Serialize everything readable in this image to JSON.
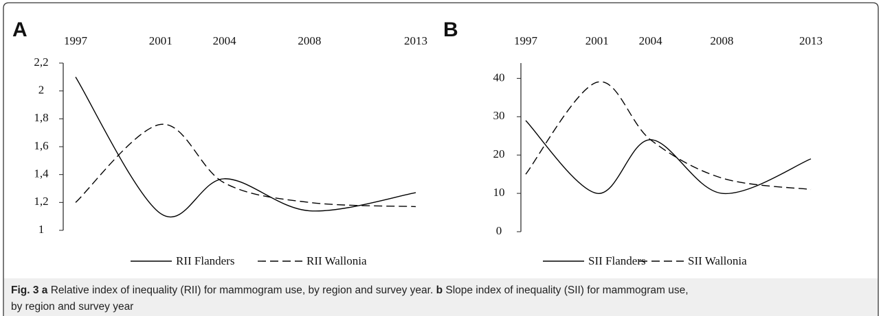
{
  "chart_data": [
    {
      "type": "line",
      "panel": "A",
      "x": [
        1997,
        2001,
        2004,
        2008,
        2013
      ],
      "xlim": [
        1997,
        2013
      ],
      "xticks": [
        1997,
        2001,
        2004,
        2008,
        2013
      ],
      "ylim": [
        1,
        2.2
      ],
      "yticks": [
        1,
        {
          "value": 1.2,
          "label": "1,2"
        },
        {
          "value": 1.4,
          "label": "1,4"
        },
        {
          "value": 1.6,
          "label": "1,6"
        },
        {
          "value": 1.8,
          "label": "1,8"
        },
        2,
        {
          "value": 2.2,
          "label": "2,2"
        }
      ],
      "series": [
        {
          "name": "RII Flanders",
          "color": "#000000",
          "dash": "solid",
          "values": [
            2.1,
            1.12,
            1.37,
            1.14,
            1.27
          ]
        },
        {
          "name": "RII Wallonia",
          "color": "#000000",
          "dash": "dashed",
          "values": [
            1.2,
            1.76,
            1.34,
            1.2,
            1.17
          ]
        }
      ]
    },
    {
      "type": "line",
      "panel": "B",
      "x": [
        1997,
        2001,
        2004,
        2008,
        2013
      ],
      "xlim": [
        1997,
        2013
      ],
      "xticks": [
        1997,
        2001,
        2004,
        2008,
        2013
      ],
      "ylim": [
        0,
        44
      ],
      "yticks": [
        0,
        10,
        20,
        30,
        40
      ],
      "series": [
        {
          "name": "SII Flanders",
          "color": "#000000",
          "dash": "solid",
          "values": [
            29,
            10,
            24,
            10,
            19
          ]
        },
        {
          "name": "SII Wallonia",
          "color": "#000000",
          "dash": "dashed",
          "values": [
            15,
            39,
            24,
            14,
            11
          ]
        }
      ]
    }
  ],
  "caption": {
    "figure": "Fig. 3",
    "a_letter": "a",
    "a_text": "Relative index of inequality (RII) for mammogram use, by region and survey year.",
    "b_letter": "b",
    "b_text": "Slope index of inequality (SII) for mammogram use, by region and survey year"
  }
}
